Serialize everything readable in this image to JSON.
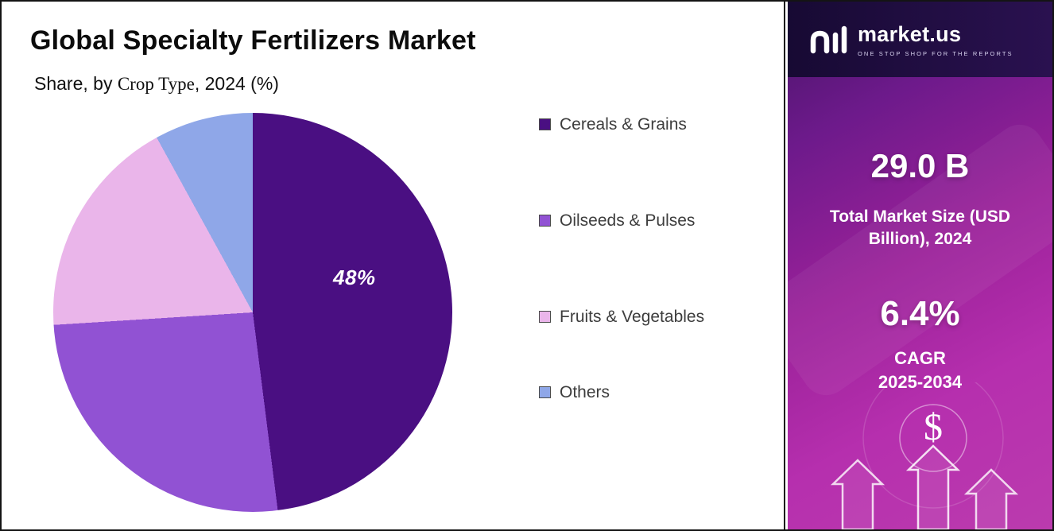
{
  "header": {
    "title": "Global Specialty Fertilizers Market",
    "subtitle_prefix": "Share, by ",
    "subtitle_emphasis": "Crop Type",
    "subtitle_suffix": ", 2024 (%)"
  },
  "chart_data": {
    "type": "pie",
    "title": "Global Specialty Fertilizers Market",
    "subtitle": "Share, by Crop Type, 2024 (%)",
    "labels": [
      "Cereals & Grains",
      "Oilseeds & Pulses",
      "Fruits & Vegetables",
      "Others"
    ],
    "values": [
      48,
      26,
      18,
      8
    ],
    "colors": [
      "#4a0f82",
      "#9152d3",
      "#eab5ea",
      "#8fa7e8"
    ],
    "value_label": "48%",
    "value_label_slice": "Cereals & Grains",
    "start_angle_deg": 0,
    "direction": "clockwise",
    "legend_position": "right"
  },
  "brand": {
    "logo_text": "market.us",
    "tagline": "ONE STOP SHOP FOR THE REPORTS",
    "market_size_value": "29.0 B",
    "market_size_label": "Total Market Size (USD Billion), 2024",
    "cagr_value": "6.4%",
    "cagr_label": "CAGR",
    "cagr_period": "2025-2034",
    "dollar_symbol": "$",
    "panel_gradient": [
      "#471367",
      "#9a2199",
      "#bb3bae"
    ]
  }
}
